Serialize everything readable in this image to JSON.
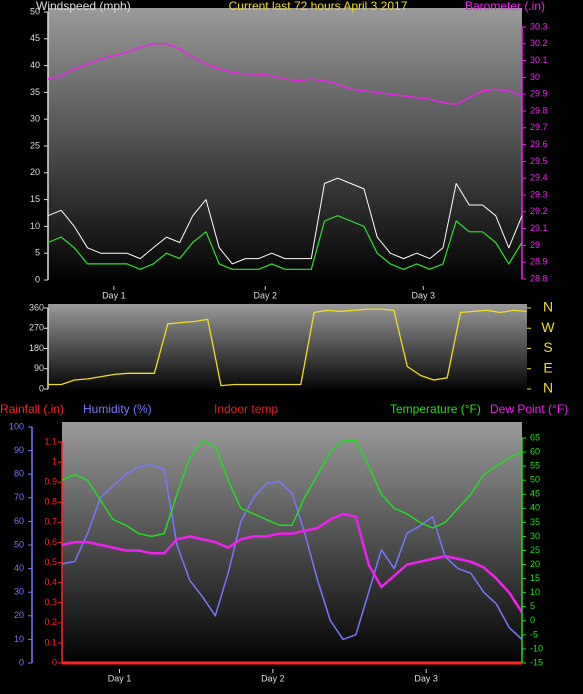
{
  "chart_data": [
    {
      "type": "line",
      "title": "Current last 72 hours April 3 2017",
      "ylabel": "Windspeed (mph)",
      "y2label": "Barometer (.in)",
      "x": [
        0,
        2,
        4,
        6,
        8,
        10,
        12,
        14,
        16,
        18,
        20,
        22,
        24,
        26,
        28,
        30,
        32,
        34,
        36,
        38,
        40,
        42,
        44,
        46,
        48,
        50,
        52,
        54,
        56,
        58,
        60,
        62,
        64,
        66,
        68,
        70,
        72
      ],
      "xlim": [
        0,
        72
      ],
      "xticks": [
        {
          "value": 10,
          "label": "Day 1"
        },
        {
          "value": 33,
          "label": "Day 2"
        },
        {
          "value": 57,
          "label": "Day 3"
        }
      ],
      "ylim": [
        0,
        50
      ],
      "yticks": [
        0,
        5,
        10,
        15,
        20,
        25,
        30,
        35,
        40,
        45,
        50
      ],
      "y2lim": [
        28.8,
        30.3
      ],
      "y2ticks": [
        28.8,
        28.9,
        29,
        29.1,
        29.2,
        29.3,
        29.4,
        29.5,
        29.6,
        29.7,
        29.8,
        29.9,
        30,
        30.1,
        30.2,
        30.3
      ],
      "series": [
        {
          "color": "#ffffff",
          "values": [
            12,
            13,
            10,
            6,
            5,
            5,
            5,
            4,
            6,
            8,
            7,
            12,
            15,
            6,
            3,
            4,
            4,
            5,
            4,
            4,
            4,
            18,
            19,
            18,
            17,
            8,
            5,
            4,
            5,
            4,
            6,
            18,
            14,
            14,
            12,
            6,
            12
          ]
        },
        {
          "color": "#33dd33",
          "values": [
            7,
            8,
            6,
            3,
            3,
            3,
            3,
            2,
            3,
            5,
            4,
            7,
            9,
            3,
            2,
            2,
            2,
            3,
            2,
            2,
            2,
            11,
            12,
            11,
            10,
            5,
            3,
            2,
            3,
            2,
            3,
            11,
            9,
            9,
            7,
            3,
            7
          ]
        },
        {
          "color": "#ee22ee",
          "axis": "y2",
          "values": [
            29.99,
            30.01,
            30.05,
            30.08,
            30.11,
            30.13,
            30.15,
            30.18,
            30.2,
            30.2,
            30.17,
            30.12,
            30.08,
            30.05,
            30.03,
            30.02,
            30.02,
            30.01,
            29.99,
            29.98,
            29.99,
            29.98,
            29.96,
            29.93,
            29.92,
            29.91,
            29.9,
            29.89,
            29.88,
            29.87,
            29.85,
            29.84,
            29.88,
            29.92,
            29.93,
            29.92,
            29.89
          ]
        }
      ]
    },
    {
      "type": "line",
      "x": [
        0,
        2,
        4,
        6,
        8,
        10,
        12,
        14,
        16,
        18,
        20,
        22,
        24,
        26,
        28,
        30,
        32,
        34,
        36,
        38,
        40,
        42,
        44,
        46,
        48,
        50,
        52,
        54,
        56,
        58,
        60,
        62,
        64,
        66,
        68,
        70,
        72
      ],
      "xlim": [
        0,
        72
      ],
      "ylim": [
        0,
        360
      ],
      "yticks": [
        0,
        90,
        180,
        270,
        360
      ],
      "y2lim": [
        0,
        360
      ],
      "y2ticks": [
        {
          "value": 360,
          "label": "N"
        },
        {
          "value": 270,
          "label": "W"
        },
        {
          "value": 180,
          "label": "S"
        },
        {
          "value": 90,
          "label": "E"
        },
        {
          "value": 0,
          "label": "N"
        }
      ],
      "series": [
        {
          "color": "#eedd22",
          "values": [
            20,
            20,
            40,
            45,
            55,
            65,
            70,
            70,
            70,
            290,
            295,
            300,
            310,
            15,
            20,
            20,
            20,
            20,
            20,
            20,
            340,
            350,
            345,
            350,
            355,
            355,
            350,
            100,
            60,
            40,
            50,
            340,
            345,
            350,
            340,
            350,
            345
          ]
        }
      ]
    },
    {
      "type": "line",
      "x": [
        0,
        2,
        4,
        6,
        8,
        10,
        12,
        14,
        16,
        18,
        20,
        22,
        24,
        26,
        28,
        30,
        32,
        34,
        36,
        38,
        40,
        42,
        44,
        46,
        48,
        50,
        52,
        54,
        56,
        58,
        60,
        62,
        64,
        66,
        68,
        70,
        72
      ],
      "xlim": [
        0,
        72
      ],
      "xticks": [
        {
          "value": 9,
          "label": "Day 1"
        },
        {
          "value": 33,
          "label": "Day 2"
        },
        {
          "value": 57,
          "label": "Day 3"
        }
      ],
      "ylim": [
        0,
        1.1
      ],
      "yticks": [
        0,
        0.1,
        0.2,
        0.3,
        0.4,
        0.5,
        0.6,
        0.7,
        0.8,
        0.9,
        1,
        1.1
      ],
      "y3lim": [
        0,
        100
      ],
      "y3ticks": [
        0,
        10,
        20,
        30,
        40,
        50,
        60,
        70,
        80,
        90,
        100
      ],
      "y2lim": [
        -15,
        65
      ],
      "y2ticks": [
        -15,
        -10,
        -5,
        0,
        5,
        10,
        15,
        20,
        25,
        30,
        35,
        40,
        45,
        50,
        55,
        60,
        65
      ],
      "series": [
        {
          "name": "Rainfall (.in)",
          "color": "#ff2222",
          "values": [
            0,
            0,
            0,
            0,
            0,
            0,
            0,
            0,
            0,
            0,
            0,
            0,
            0,
            0,
            0,
            0,
            0,
            0,
            0,
            0,
            0,
            0,
            0,
            0,
            0,
            0,
            0,
            0,
            0,
            0,
            0,
            0,
            0,
            0,
            0,
            0,
            0
          ]
        },
        {
          "name": "Humidity (%)",
          "color": "#7777ff",
          "axis": "y3",
          "values": [
            42,
            43,
            55,
            70,
            75,
            80,
            83,
            84,
            82,
            50,
            35,
            28,
            20,
            38,
            60,
            70,
            76,
            77,
            72,
            55,
            35,
            18,
            10,
            12,
            30,
            48,
            40,
            55,
            58,
            62,
            45,
            40,
            38,
            30,
            25,
            15,
            10
          ]
        },
        {
          "name": "Indoor temp",
          "color": "#dd2222",
          "axis": "y2",
          "values": [
            null,
            null,
            null,
            null,
            null,
            null,
            null,
            null,
            null,
            null,
            null,
            null,
            null,
            null,
            null,
            null,
            null,
            null,
            null,
            null,
            null,
            null,
            null,
            null,
            null,
            null,
            null,
            null,
            null,
            null,
            null,
            null,
            null,
            null,
            null,
            null,
            null
          ]
        },
        {
          "name": "Temperature (°F)",
          "color": "#22dd22",
          "axis": "y2",
          "values": [
            50,
            52,
            50,
            43,
            36,
            34,
            31,
            30,
            31,
            45,
            58,
            64,
            62,
            50,
            40,
            38,
            36,
            34,
            34,
            44,
            52,
            60,
            64,
            64,
            55,
            45,
            40,
            38,
            35,
            33,
            35,
            40,
            45,
            52,
            55,
            58,
            60
          ]
        },
        {
          "name": "Dew Point (°F)",
          "color": "#ee22ee",
          "axis": "y2",
          "values": [
            27,
            28,
            28,
            27,
            26,
            25,
            25,
            24,
            24,
            29,
            30,
            29,
            28,
            26,
            29,
            30,
            30,
            31,
            31,
            32,
            33,
            36,
            38,
            37,
            20,
            12,
            16,
            20,
            21,
            22,
            23,
            22,
            21,
            19,
            15,
            10,
            3
          ]
        }
      ]
    }
  ]
}
